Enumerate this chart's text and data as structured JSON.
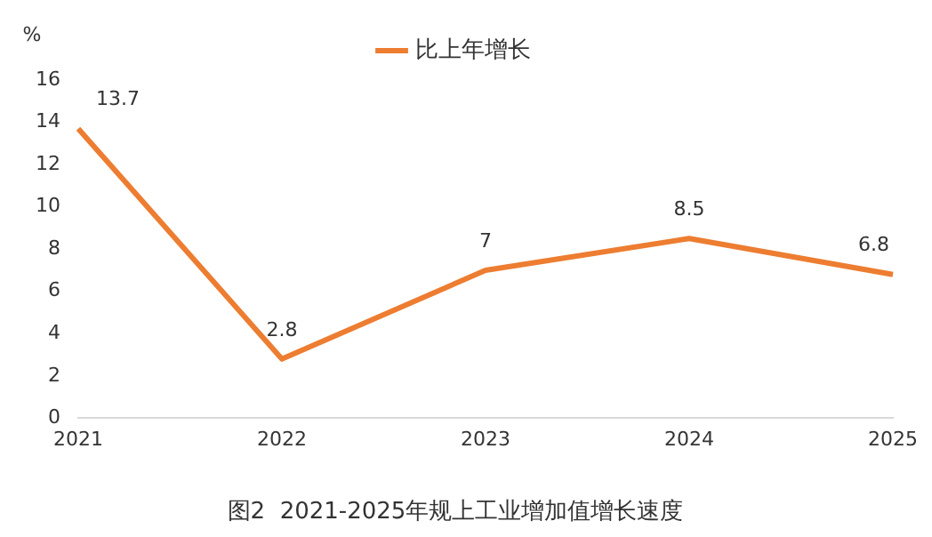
{
  "chart_data": {
    "type": "line",
    "title": "图2  2021-2025年规上工业增加值增长速度",
    "ylabel": "%",
    "categories": [
      "2021",
      "2022",
      "2023",
      "2024",
      "2025"
    ],
    "series": [
      {
        "name": "比上年增长",
        "color": "#ed7d31",
        "values": [
          13.7,
          2.8,
          7,
          8.5,
          6.8
        ]
      }
    ],
    "ylim": [
      0,
      16
    ],
    "yticks": [
      0,
      2,
      4,
      6,
      8,
      10,
      12,
      14,
      16
    ],
    "grid": false,
    "legend": "top",
    "data_labels": true,
    "marker": "none",
    "line_style": "solid"
  }
}
